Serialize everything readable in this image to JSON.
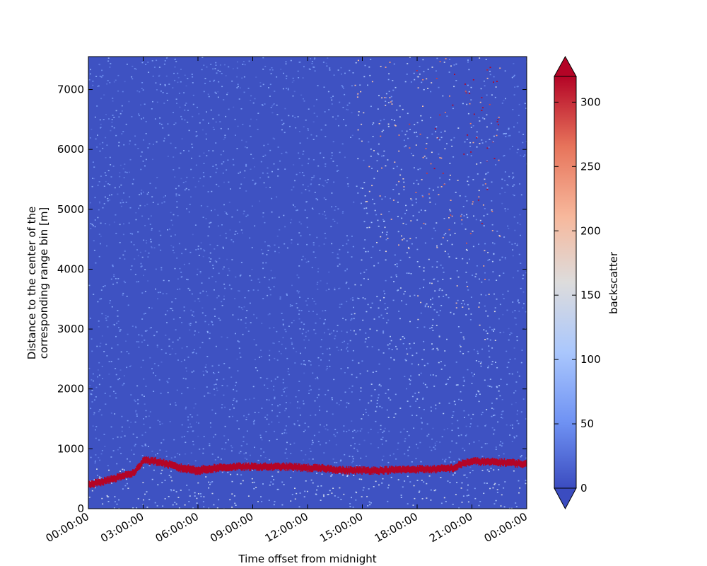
{
  "chart_data": {
    "type": "heatmap",
    "xlabel": "Time offset from midnight",
    "ylabel": [
      "Distance to the center of the",
      "corresponding range bin [m]"
    ],
    "x_ticks": [
      "00:00:00",
      "03:00:00",
      "06:00:00",
      "09:00:00",
      "12:00:00",
      "15:00:00",
      "18:00:00",
      "21:00:00",
      "00:00:00"
    ],
    "x_range_hours": [
      0,
      24
    ],
    "y_ticks": [
      0,
      1000,
      2000,
      3000,
      4000,
      5000,
      6000,
      7000
    ],
    "ylim": [
      0,
      7550
    ],
    "colorbar": {
      "label": "backscatter",
      "ticks": [
        0,
        50,
        100,
        150,
        200,
        250,
        300
      ],
      "range": [
        0,
        320
      ],
      "extend": "both",
      "colormap": "coolwarm",
      "colors": [
        "#3b4cc0",
        "#6f92f3",
        "#aac7fd",
        "#dddcdc",
        "#f7b89c",
        "#e7745b",
        "#b40426"
      ]
    },
    "cloud_layer": {
      "description_values": "height in m of the high-backscatter layer vs hour",
      "hours": [
        0,
        1,
        2,
        2.5,
        3,
        4,
        5,
        6,
        7,
        8,
        9,
        10,
        11,
        12,
        13,
        14,
        15,
        16,
        17,
        18,
        19,
        20,
        20.5,
        21,
        22,
        23,
        24
      ],
      "height_m": [
        400,
        470,
        560,
        600,
        820,
        770,
        680,
        640,
        680,
        700,
        700,
        700,
        700,
        680,
        670,
        640,
        640,
        640,
        650,
        660,
        660,
        680,
        760,
        790,
        780,
        770,
        740
      ],
      "thickness_m": [
        110,
        110,
        110,
        110,
        110,
        110,
        120,
        130,
        120,
        110,
        110,
        110,
        110,
        110,
        110,
        110,
        110,
        110,
        110,
        110,
        110,
        110,
        110,
        110,
        110,
        110,
        110
      ],
      "value": 320
    },
    "upper_noise": {
      "start_hour": 14.5,
      "max_value": 320
    }
  }
}
